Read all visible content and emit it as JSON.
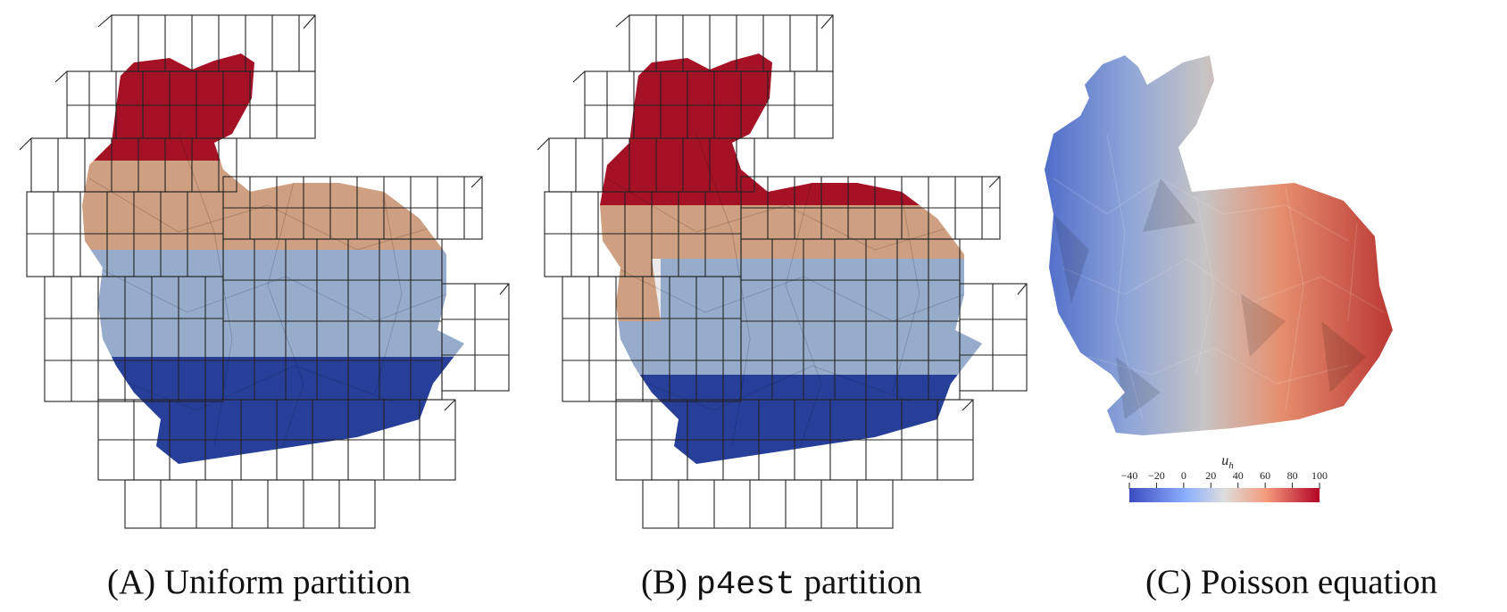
{
  "panels": [
    {
      "tag": "(A)",
      "title": "Uniform partition",
      "bands": [
        "#b3142a",
        "#e0ad8c",
        "#a4bbdc",
        "#2c45a8"
      ]
    },
    {
      "tag": "(B)",
      "title_code": "p4est",
      "title_rest": " partition",
      "bands": [
        "#b3142a",
        "#e0ad8c",
        "#a4bbdc",
        "#2c45a8"
      ]
    },
    {
      "tag": "(C)",
      "title": "Poisson equation"
    }
  ],
  "colorbar": {
    "label": "u_h",
    "label_main": "u",
    "label_sub": "h",
    "ticks": [
      "−40",
      "−20",
      "0",
      "20",
      "40",
      "60",
      "80",
      "100"
    ],
    "range": [
      -40,
      100
    ],
    "colormap": "coolwarm",
    "colors": {
      "low": "#3b4cc0",
      "mid": "#dddddd",
      "high": "#b40426"
    }
  }
}
